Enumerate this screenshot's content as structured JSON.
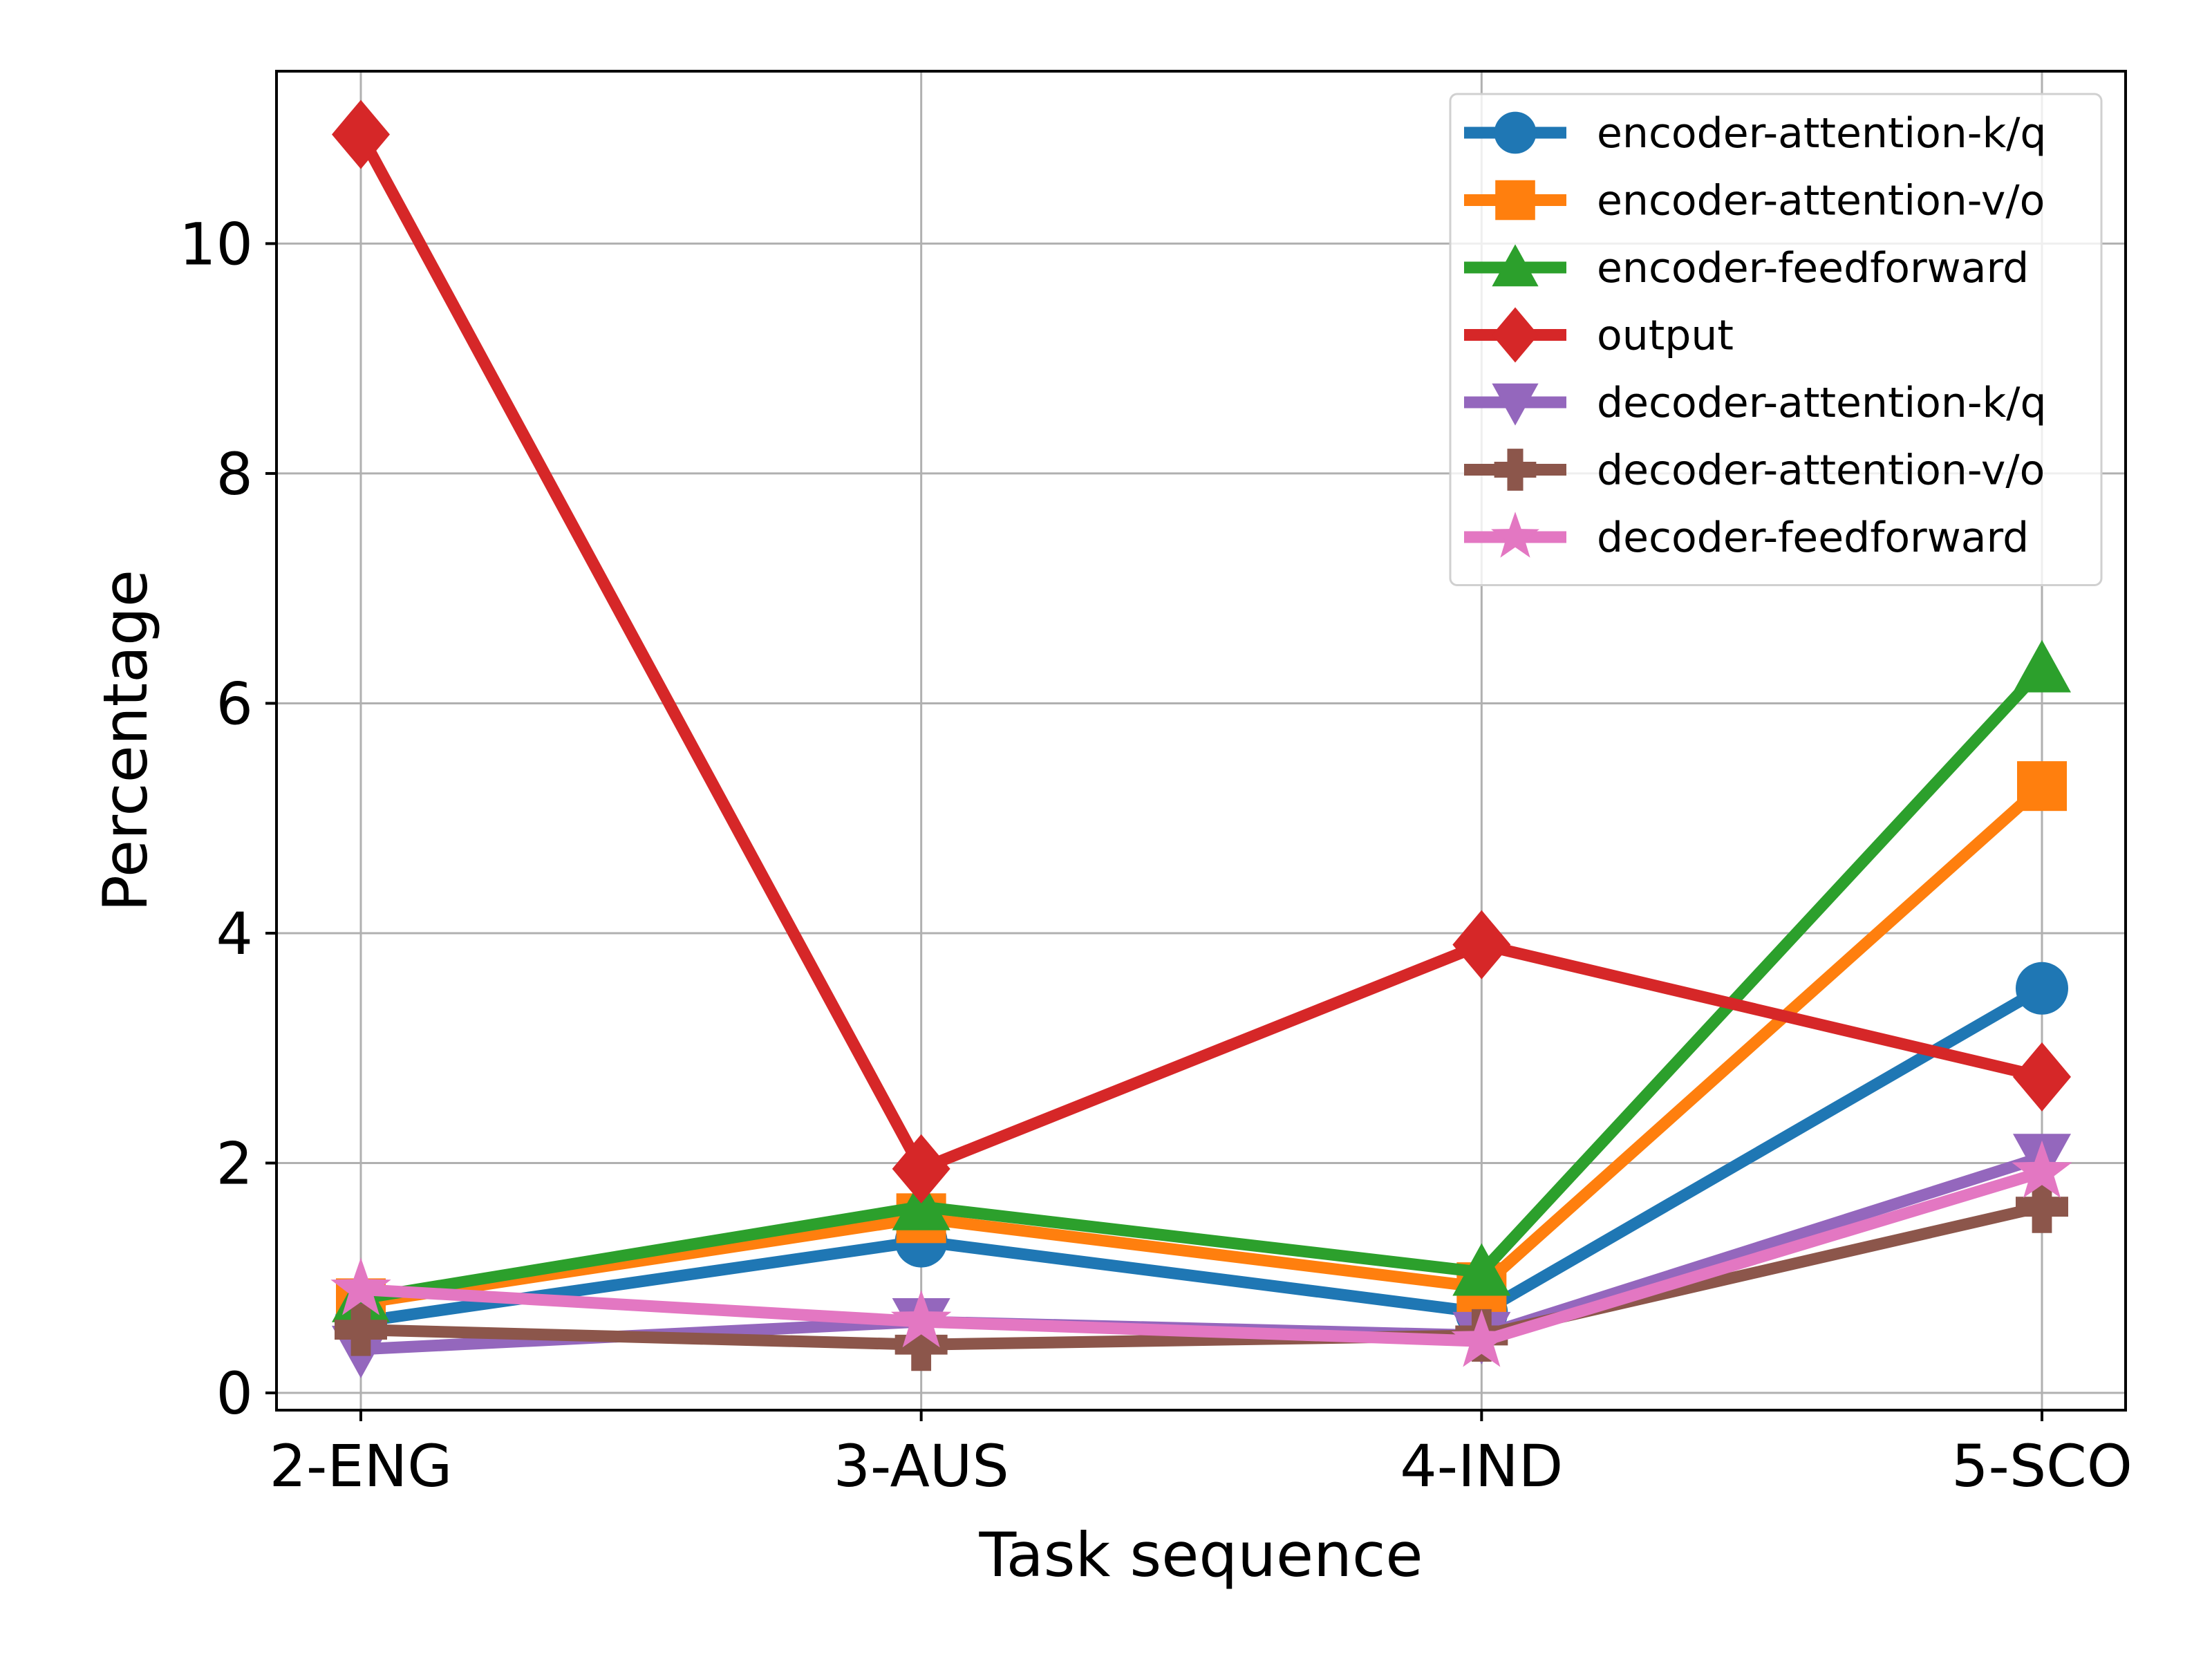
{
  "chart_data": {
    "type": "line",
    "title": "",
    "xlabel": "Task sequence",
    "ylabel": "Percentage",
    "categories": [
      "2-ENG",
      "3-AUS",
      "4-IND",
      "5-SCO"
    ],
    "ylim": [
      -0.15,
      11.5
    ],
    "yticks": [
      0,
      2,
      4,
      6,
      8,
      10
    ],
    "grid": true,
    "legend_position": "top-right",
    "series": [
      {
        "name": "encoder-attention-k/q",
        "color": "#1f77b4",
        "marker": "circle",
        "values": [
          0.62,
          1.32,
          0.7,
          3.52
        ]
      },
      {
        "name": "encoder-attention-v/o",
        "color": "#ff7f0e",
        "marker": "square",
        "values": [
          0.78,
          1.52,
          0.92,
          5.28
        ]
      },
      {
        "name": "encoder-feedforward",
        "color": "#2ca02c",
        "marker": "triangle-up",
        "values": [
          0.82,
          1.62,
          1.05,
          6.3
        ]
      },
      {
        "name": "output",
        "color": "#d62728",
        "marker": "diamond",
        "values": [
          10.95,
          1.95,
          3.9,
          2.75
        ]
      },
      {
        "name": "decoder-attention-k/q",
        "color": "#9467bd",
        "marker": "triangle-down",
        "values": [
          0.38,
          0.62,
          0.5,
          2.05
        ]
      },
      {
        "name": "decoder-attention-v/o",
        "color": "#8c564b",
        "marker": "plus",
        "values": [
          0.55,
          0.42,
          0.5,
          1.62
        ]
      },
      {
        "name": "decoder-feedforward",
        "color": "#e377c2",
        "marker": "star",
        "values": [
          0.9,
          0.62,
          0.45,
          1.92
        ]
      }
    ]
  }
}
